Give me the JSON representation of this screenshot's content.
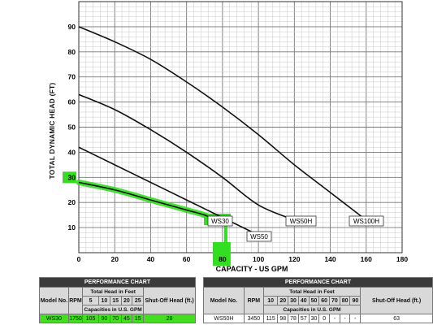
{
  "chart_data": {
    "type": "line",
    "title": "",
    "xlabel": "CAPACITY - US GPM",
    "ylabel": "TOTAL DYNAMIC HEAD (FT)",
    "xlim": [
      0,
      180
    ],
    "ylim": [
      0,
      100
    ],
    "xticks": [
      0,
      20,
      40,
      60,
      80,
      100,
      120,
      140,
      160,
      180
    ],
    "yticks": [
      10,
      20,
      30,
      40,
      50,
      60,
      70,
      80,
      90
    ],
    "grid": true,
    "series": [
      {
        "name": "WS30",
        "x": [
          0,
          20,
          40,
          60,
          70,
          80
        ],
        "y": [
          28,
          25,
          21,
          17,
          15,
          12
        ]
      },
      {
        "name": "WS50",
        "x": [
          0,
          20,
          40,
          60,
          80,
          100
        ],
        "y": [
          42,
          35,
          28,
          21,
          14,
          7
        ]
      },
      {
        "name": "WS50H",
        "x": [
          0,
          20,
          40,
          60,
          80,
          100,
          120
        ],
        "y": [
          63,
          57,
          49,
          40,
          30,
          19,
          13
        ]
      },
      {
        "name": "WS100H",
        "x": [
          0,
          20,
          40,
          60,
          80,
          100,
          120,
          140,
          160
        ],
        "y": [
          90,
          84,
          77,
          68,
          58,
          47,
          35,
          24,
          13
        ]
      }
    ],
    "highlight": {
      "series": "WS30",
      "x_marker": 80,
      "y_marker": 30,
      "color": "#33dd22"
    }
  },
  "labels": {
    "ws30": "WS30",
    "ws50": "WS50",
    "ws50h": "WS50H",
    "ws100h": "WS100H"
  },
  "performance_tables": [
    {
      "title": "PERFORMANCE CHART",
      "model_header": "Model No.",
      "rpm_header": "RPM",
      "head_header": "Total Head in Feet",
      "capacity_header": "Capacities in U.S. GPM",
      "shutoff_header": "Shut-Off Head (ft.)",
      "heads": [
        "5",
        "10",
        "15",
        "20",
        "25"
      ],
      "row": {
        "model": "WS30",
        "rpm": "1750",
        "values": [
          "105",
          "90",
          "70",
          "45",
          "15"
        ],
        "shutoff": "28"
      }
    },
    {
      "title": "PERFORMANCE CHART",
      "model_header": "Model No.",
      "rpm_header": "RPM",
      "head_header": "Total Head in Feet",
      "capacity_header": "Capacities in U.S. GPM",
      "shutoff_header": "Shut-Off Head (ft.)",
      "heads": [
        "10",
        "20",
        "30",
        "40",
        "50",
        "60",
        "70",
        "80",
        "90"
      ],
      "row": {
        "model": "WS50H",
        "rpm": "3450",
        "values": [
          "115",
          "98",
          "78",
          "57",
          "30",
          "0",
          "-",
          "-",
          "-"
        ],
        "shutoff": "63"
      }
    }
  ]
}
